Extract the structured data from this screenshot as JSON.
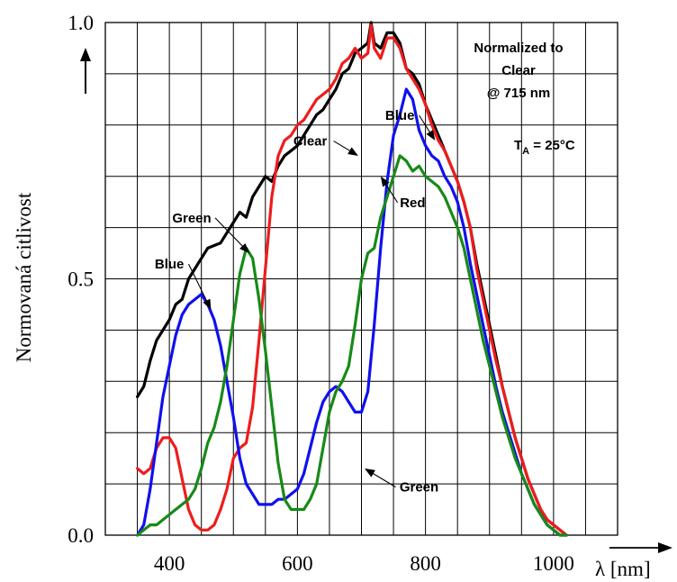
{
  "chart_data": {
    "type": "line",
    "title": "",
    "xlabel": "λ [nm]",
    "ylabel": "Normovaná citlivost",
    "xlim": [
      300,
      1100
    ],
    "ylim": [
      0,
      1.0
    ],
    "x_ticks": [
      {
        "value": 400,
        "label": "400"
      },
      {
        "value": 600,
        "label": "600"
      },
      {
        "value": 800,
        "label": "800"
      },
      {
        "value": 1000,
        "label": "1000"
      }
    ],
    "y_ticks": [
      {
        "value": 0.0,
        "label": "0.0"
      },
      {
        "value": 0.5,
        "label": "0.5"
      },
      {
        "value": 1.0,
        "label": "1.0"
      }
    ],
    "grid": true,
    "grid_x_step": 50,
    "grid_y_step": 0.1,
    "annotations": {
      "normalized_line1": "Normalized to",
      "normalized_line2": "Clear",
      "normalized_line3": "@ 715 nm",
      "ta_main": "T",
      "ta_sub": "A",
      "ta_rest": " = 25°C"
    },
    "series": [
      {
        "name": "Clear",
        "color": "#000000",
        "points": [
          [
            350,
            0.27
          ],
          [
            360,
            0.29
          ],
          [
            370,
            0.34
          ],
          [
            380,
            0.38
          ],
          [
            390,
            0.4
          ],
          [
            400,
            0.42
          ],
          [
            410,
            0.45
          ],
          [
            420,
            0.46
          ],
          [
            430,
            0.5
          ],
          [
            440,
            0.52
          ],
          [
            450,
            0.54
          ],
          [
            460,
            0.56
          ],
          [
            470,
            0.565
          ],
          [
            480,
            0.57
          ],
          [
            490,
            0.59
          ],
          [
            500,
            0.61
          ],
          [
            510,
            0.63
          ],
          [
            520,
            0.62
          ],
          [
            530,
            0.66
          ],
          [
            540,
            0.68
          ],
          [
            550,
            0.7
          ],
          [
            560,
            0.69
          ],
          [
            570,
            0.72
          ],
          [
            580,
            0.74
          ],
          [
            590,
            0.75
          ],
          [
            600,
            0.76
          ],
          [
            610,
            0.78
          ],
          [
            620,
            0.8
          ],
          [
            630,
            0.82
          ],
          [
            640,
            0.83
          ],
          [
            650,
            0.85
          ],
          [
            660,
            0.87
          ],
          [
            670,
            0.9
          ],
          [
            680,
            0.91
          ],
          [
            690,
            0.94
          ],
          [
            700,
            0.95
          ],
          [
            710,
            0.96
          ],
          [
            715,
            1.0
          ],
          [
            720,
            0.96
          ],
          [
            730,
            0.95
          ],
          [
            740,
            0.98
          ],
          [
            750,
            0.98
          ],
          [
            760,
            0.96
          ],
          [
            770,
            0.91
          ],
          [
            780,
            0.9
          ],
          [
            790,
            0.88
          ],
          [
            800,
            0.84
          ],
          [
            810,
            0.81
          ],
          [
            820,
            0.78
          ],
          [
            830,
            0.75
          ],
          [
            840,
            0.72
          ],
          [
            850,
            0.69
          ],
          [
            860,
            0.65
          ],
          [
            870,
            0.6
          ],
          [
            880,
            0.53
          ],
          [
            890,
            0.47
          ],
          [
            900,
            0.41
          ],
          [
            910,
            0.35
          ],
          [
            920,
            0.29
          ],
          [
            930,
            0.24
          ],
          [
            940,
            0.19
          ],
          [
            950,
            0.15
          ],
          [
            960,
            0.11
          ],
          [
            970,
            0.08
          ],
          [
            980,
            0.05
          ],
          [
            990,
            0.03
          ],
          [
            1000,
            0.02
          ],
          [
            1010,
            0.01
          ],
          [
            1020,
            0.0
          ]
        ]
      },
      {
        "name": "Red",
        "color": "#ee1c1c",
        "points": [
          [
            350,
            0.13
          ],
          [
            360,
            0.12
          ],
          [
            370,
            0.13
          ],
          [
            380,
            0.17
          ],
          [
            390,
            0.19
          ],
          [
            400,
            0.19
          ],
          [
            410,
            0.17
          ],
          [
            420,
            0.11
          ],
          [
            430,
            0.05
          ],
          [
            440,
            0.02
          ],
          [
            450,
            0.01
          ],
          [
            460,
            0.01
          ],
          [
            470,
            0.02
          ],
          [
            480,
            0.05
          ],
          [
            490,
            0.09
          ],
          [
            500,
            0.15
          ],
          [
            510,
            0.17
          ],
          [
            520,
            0.18
          ],
          [
            530,
            0.25
          ],
          [
            540,
            0.38
          ],
          [
            550,
            0.52
          ],
          [
            560,
            0.66
          ],
          [
            570,
            0.74
          ],
          [
            580,
            0.77
          ],
          [
            590,
            0.78
          ],
          [
            600,
            0.8
          ],
          [
            610,
            0.81
          ],
          [
            620,
            0.83
          ],
          [
            630,
            0.85
          ],
          [
            640,
            0.86
          ],
          [
            650,
            0.87
          ],
          [
            660,
            0.89
          ],
          [
            670,
            0.92
          ],
          [
            680,
            0.93
          ],
          [
            690,
            0.95
          ],
          [
            700,
            0.93
          ],
          [
            710,
            0.94
          ],
          [
            715,
            0.995
          ],
          [
            720,
            0.95
          ],
          [
            730,
            0.93
          ],
          [
            740,
            0.97
          ],
          [
            750,
            0.97
          ],
          [
            760,
            0.95
          ],
          [
            770,
            0.91
          ],
          [
            780,
            0.89
          ],
          [
            790,
            0.87
          ],
          [
            800,
            0.84
          ],
          [
            810,
            0.8
          ],
          [
            820,
            0.77
          ],
          [
            830,
            0.75
          ],
          [
            840,
            0.72
          ],
          [
            850,
            0.69
          ],
          [
            860,
            0.65
          ],
          [
            870,
            0.6
          ],
          [
            880,
            0.52
          ],
          [
            890,
            0.46
          ],
          [
            900,
            0.4
          ],
          [
            910,
            0.34
          ],
          [
            920,
            0.29
          ],
          [
            930,
            0.24
          ],
          [
            940,
            0.19
          ],
          [
            950,
            0.15
          ],
          [
            960,
            0.11
          ],
          [
            970,
            0.08
          ],
          [
            980,
            0.05
          ],
          [
            990,
            0.03
          ],
          [
            1000,
            0.02
          ],
          [
            1010,
            0.01
          ],
          [
            1020,
            0.0
          ]
        ]
      },
      {
        "name": "Blue",
        "color": "#1010ee",
        "points": [
          [
            350,
            0.0
          ],
          [
            360,
            0.02
          ],
          [
            370,
            0.09
          ],
          [
            380,
            0.18
          ],
          [
            390,
            0.27
          ],
          [
            400,
            0.33
          ],
          [
            410,
            0.39
          ],
          [
            420,
            0.43
          ],
          [
            430,
            0.45
          ],
          [
            440,
            0.46
          ],
          [
            450,
            0.47
          ],
          [
            460,
            0.45
          ],
          [
            470,
            0.42
          ],
          [
            480,
            0.37
          ],
          [
            490,
            0.3
          ],
          [
            500,
            0.23
          ],
          [
            510,
            0.15
          ],
          [
            520,
            0.1
          ],
          [
            530,
            0.08
          ],
          [
            540,
            0.06
          ],
          [
            550,
            0.06
          ],
          [
            560,
            0.06
          ],
          [
            570,
            0.07
          ],
          [
            580,
            0.07
          ],
          [
            590,
            0.08
          ],
          [
            600,
            0.09
          ],
          [
            610,
            0.12
          ],
          [
            620,
            0.17
          ],
          [
            630,
            0.22
          ],
          [
            640,
            0.26
          ],
          [
            650,
            0.28
          ],
          [
            660,
            0.29
          ],
          [
            670,
            0.28
          ],
          [
            680,
            0.26
          ],
          [
            690,
            0.24
          ],
          [
            700,
            0.24
          ],
          [
            710,
            0.28
          ],
          [
            720,
            0.41
          ],
          [
            730,
            0.56
          ],
          [
            740,
            0.69
          ],
          [
            750,
            0.78
          ],
          [
            760,
            0.82
          ],
          [
            770,
            0.87
          ],
          [
            780,
            0.85
          ],
          [
            790,
            0.79
          ],
          [
            800,
            0.76
          ],
          [
            810,
            0.74
          ],
          [
            820,
            0.73
          ],
          [
            830,
            0.7
          ],
          [
            840,
            0.68
          ],
          [
            850,
            0.65
          ],
          [
            860,
            0.6
          ],
          [
            870,
            0.53
          ],
          [
            880,
            0.47
          ],
          [
            890,
            0.41
          ],
          [
            900,
            0.35
          ],
          [
            910,
            0.29
          ],
          [
            920,
            0.24
          ],
          [
            930,
            0.2
          ],
          [
            940,
            0.16
          ],
          [
            950,
            0.12
          ],
          [
            960,
            0.09
          ],
          [
            970,
            0.06
          ],
          [
            980,
            0.04
          ],
          [
            990,
            0.02
          ],
          [
            1000,
            0.01
          ],
          [
            1010,
            0.0
          ],
          [
            1020,
            0.0
          ]
        ]
      },
      {
        "name": "Green",
        "color": "#178a17",
        "points": [
          [
            350,
            0.0
          ],
          [
            360,
            0.01
          ],
          [
            370,
            0.02
          ],
          [
            380,
            0.02
          ],
          [
            390,
            0.03
          ],
          [
            400,
            0.04
          ],
          [
            410,
            0.05
          ],
          [
            420,
            0.06
          ],
          [
            430,
            0.07
          ],
          [
            440,
            0.09
          ],
          [
            450,
            0.13
          ],
          [
            460,
            0.18
          ],
          [
            470,
            0.21
          ],
          [
            480,
            0.26
          ],
          [
            490,
            0.33
          ],
          [
            500,
            0.42
          ],
          [
            510,
            0.51
          ],
          [
            520,
            0.56
          ],
          [
            530,
            0.54
          ],
          [
            540,
            0.46
          ],
          [
            550,
            0.36
          ],
          [
            560,
            0.25
          ],
          [
            570,
            0.14
          ],
          [
            580,
            0.07
          ],
          [
            590,
            0.05
          ],
          [
            600,
            0.05
          ],
          [
            610,
            0.05
          ],
          [
            620,
            0.07
          ],
          [
            630,
            0.1
          ],
          [
            640,
            0.17
          ],
          [
            650,
            0.24
          ],
          [
            660,
            0.28
          ],
          [
            670,
            0.3
          ],
          [
            680,
            0.33
          ],
          [
            690,
            0.41
          ],
          [
            700,
            0.5
          ],
          [
            710,
            0.55
          ],
          [
            720,
            0.56
          ],
          [
            730,
            0.62
          ],
          [
            740,
            0.66
          ],
          [
            750,
            0.7
          ],
          [
            760,
            0.74
          ],
          [
            770,
            0.73
          ],
          [
            780,
            0.71
          ],
          [
            790,
            0.72
          ],
          [
            800,
            0.7
          ],
          [
            810,
            0.69
          ],
          [
            820,
            0.68
          ],
          [
            830,
            0.66
          ],
          [
            840,
            0.63
          ],
          [
            850,
            0.6
          ],
          [
            860,
            0.56
          ],
          [
            870,
            0.5
          ],
          [
            880,
            0.44
          ],
          [
            890,
            0.38
          ],
          [
            900,
            0.33
          ],
          [
            910,
            0.28
          ],
          [
            920,
            0.23
          ],
          [
            930,
            0.19
          ],
          [
            940,
            0.15
          ],
          [
            950,
            0.12
          ],
          [
            960,
            0.09
          ],
          [
            970,
            0.06
          ],
          [
            980,
            0.04
          ],
          [
            990,
            0.02
          ],
          [
            1000,
            0.01
          ],
          [
            1010,
            0.0
          ],
          [
            1020,
            0.0
          ]
        ]
      }
    ],
    "series_labels": [
      {
        "text": "Clear",
        "series": "Clear",
        "at": [
          620,
          0.76
        ],
        "pointer_to": [
          695,
          0.74
        ]
      },
      {
        "text": "Red",
        "series": "Red",
        "at": [
          780,
          0.64
        ],
        "pointer_to": [
          730,
          0.7
        ]
      },
      {
        "text": "Blue",
        "series": "Blue",
        "at": [
          760,
          0.81
        ],
        "pointer_to": [
          815,
          0.77
        ]
      },
      {
        "text": "Green",
        "series": "Green",
        "at": [
          435,
          0.61
        ],
        "pointer_to": [
          525,
          0.55
        ]
      },
      {
        "text": "Blue",
        "series": "Blue",
        "at": [
          400,
          0.52
        ],
        "pointer_to": [
          465,
          0.44
        ]
      },
      {
        "text": "Green",
        "series": "Green",
        "at": [
          790,
          0.085
        ],
        "pointer_to": [
          705,
          0.13
        ]
      }
    ]
  }
}
